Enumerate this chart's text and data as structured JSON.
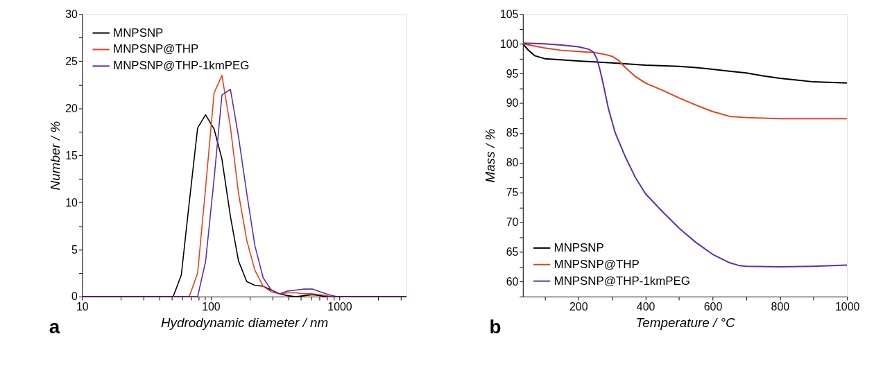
{
  "chart_data": [
    {
      "type": "line",
      "xlabel": "Hydrodynamic diameter / nm",
      "ylabel": "Number / %",
      "log": "x",
      "legend": "top left",
      "annotations": [
        "a"
      ],
      "xlim": [
        10,
        3300
      ],
      "ylim": [
        0,
        30
      ],
      "xticks": [
        10,
        {
          "value": 20,
          "label": null
        },
        {
          "value": 30,
          "label": null
        },
        {
          "value": 40,
          "label": null
        },
        {
          "value": 50,
          "label": null
        },
        {
          "value": 60,
          "label": null
        },
        {
          "value": 70,
          "label": null
        },
        {
          "value": 80,
          "label": null
        },
        {
          "value": 90,
          "label": null
        },
        100,
        {
          "value": 200,
          "label": null
        },
        {
          "value": 300,
          "label": null
        },
        {
          "value": 400,
          "label": null
        },
        {
          "value": 500,
          "label": null
        },
        {
          "value": 600,
          "label": null
        },
        {
          "value": 700,
          "label": null
        },
        {
          "value": 800,
          "label": null
        },
        {
          "value": 900,
          "label": null
        },
        1000,
        {
          "value": 2000,
          "label": null
        },
        {
          "value": 3000,
          "label": null
        }
      ],
      "yticks": [
        0,
        {
          "value": 2.5,
          "label": null
        },
        5,
        {
          "value": 7.5,
          "label": null
        },
        10,
        {
          "value": 12.5,
          "label": null
        },
        15,
        {
          "value": 17.5,
          "label": null
        },
        20,
        {
          "value": 22.5,
          "label": null
        },
        25,
        {
          "value": 27.5,
          "label": null
        },
        30
      ],
      "series": [
        {
          "name": "MNPSNP",
          "color": "#000000",
          "x": [
            10,
            51,
            59,
            68,
            79,
            91,
            106,
            122,
            142,
            164,
            190,
            220,
            255,
            295,
            342,
            396,
            459,
            531,
            615,
            712,
            825,
            955,
            3300
          ],
          "values": [
            0,
            0,
            2.3,
            10,
            17.9,
            19.3,
            17.8,
            14.6,
            8.5,
            3.8,
            1.6,
            1.2,
            1.1,
            0.7,
            0.3,
            0.1,
            0,
            0.1,
            0.2,
            0.1,
            0,
            0,
            0
          ]
        },
        {
          "name": "MNPSNP@THP",
          "color": "#e8401c",
          "x": [
            10,
            68,
            79,
            91,
            106,
            122,
            142,
            164,
            190,
            220,
            255,
            295,
            342,
            396,
            459,
            531,
            615,
            712,
            825,
            955,
            3300
          ],
          "values": [
            0,
            0,
            2.5,
            11.5,
            21.6,
            23.5,
            18,
            11,
            6,
            2.8,
            1.1,
            0.5,
            0.3,
            0.4,
            0.4,
            0.3,
            0.3,
            0.2,
            0.05,
            0,
            0
          ]
        },
        {
          "name": "MNPSNP@THP-1kmPEG",
          "color": "#5b2db3",
          "x": [
            10,
            79,
            91,
            106,
            122,
            142,
            164,
            190,
            220,
            255,
            295,
            342,
            396,
            459,
            531,
            615,
            712,
            825,
            955,
            3300
          ],
          "values": [
            0,
            0,
            3.7,
            12.5,
            21.4,
            22,
            17,
            11,
            5.4,
            2,
            0.7,
            0.3,
            0.6,
            0.7,
            0.8,
            0.8,
            0.5,
            0.2,
            0,
            0
          ]
        }
      ]
    },
    {
      "type": "line",
      "xlabel": "Temperature / °C",
      "ylabel": "Mass / %",
      "legend": "bottom left",
      "annotations": [
        "b"
      ],
      "xlim": [
        35,
        1000
      ],
      "ylim": [
        57.5,
        105
      ],
      "xticks": [
        {
          "value": 100,
          "label": null
        },
        200,
        {
          "value": 300,
          "label": null
        },
        400,
        {
          "value": 500,
          "label": null
        },
        600,
        {
          "value": 700,
          "label": null
        },
        800,
        {
          "value": 900,
          "label": null
        },
        1000
      ],
      "yticks": [
        {
          "value": 57.5,
          "label": null
        },
        60,
        {
          "value": 62.5,
          "label": null
        },
        65,
        {
          "value": 67.5,
          "label": null
        },
        70,
        {
          "value": 72.5,
          "label": null
        },
        75,
        {
          "value": 77.5,
          "label": null
        },
        80,
        {
          "value": 82.5,
          "label": null
        },
        85,
        {
          "value": 87.5,
          "label": null
        },
        90,
        {
          "value": 92.5,
          "label": null
        },
        95,
        {
          "value": 97.5,
          "label": null
        },
        100,
        {
          "value": 102.5,
          "label": null
        },
        105
      ],
      "series": [
        {
          "name": "MNPSNP",
          "color": "#000000",
          "x": [
            35,
            50,
            70,
            100,
            200,
            300,
            400,
            500,
            550,
            600,
            650,
            700,
            750,
            800,
            850,
            900,
            1000
          ],
          "values": [
            100,
            99,
            98,
            97.5,
            97.1,
            96.8,
            96.4,
            96.2,
            96.0,
            95.7,
            95.4,
            95.1,
            94.6,
            94.2,
            93.9,
            93.6,
            93.4
          ]
        },
        {
          "name": "MNPSNP@THP",
          "color": "#e8401c",
          "x": [
            35,
            100,
            150,
            200,
            250,
            280,
            300,
            320,
            340,
            370,
            400,
            450,
            500,
            550,
            600,
            650,
            700,
            800,
            1000
          ],
          "values": [
            100,
            99.3,
            98.9,
            98.7,
            98.5,
            98.2,
            97.9,
            97.2,
            96.0,
            94.5,
            93.4,
            92.2,
            90.9,
            89.7,
            88.6,
            87.8,
            87.6,
            87.4,
            87.4
          ]
        },
        {
          "name": "MNPSNP@THP-1kmPEG",
          "color": "#5b2db3",
          "x": [
            35,
            100,
            150,
            200,
            230,
            245,
            255,
            265,
            275,
            290,
            310,
            340,
            370,
            400,
            450,
            500,
            550,
            600,
            650,
            680,
            700,
            800,
            900,
            1000
          ],
          "values": [
            100.1,
            100,
            99.8,
            99.5,
            99.1,
            98.6,
            97.5,
            95.5,
            93,
            89,
            85,
            81,
            77.5,
            74.8,
            71.8,
            69,
            66.6,
            64.6,
            63.2,
            62.7,
            62.6,
            62.5,
            62.6,
            62.8
          ]
        }
      ]
    }
  ]
}
